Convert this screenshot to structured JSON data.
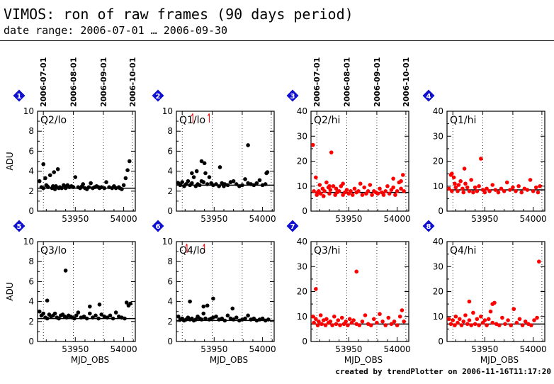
{
  "title": "VIMOS: ron of raw frames (90 days period)",
  "subtitle": "date range: 2006-07-01 … 2006-09-30",
  "footer": "created by trendPlotter on 2006-11-16T11:17:20",
  "chart_data": {
    "type": "scatter",
    "xlabel": "MJD_OBS",
    "ylabel": "ADU",
    "xlim": [
      53911,
      54012
    ],
    "xticks": [
      53950,
      54000
    ],
    "date_ticks": [
      {
        "label": "2006-07-01",
        "mjd": 53917
      },
      {
        "label": "2006-08-01",
        "mjd": 53948
      },
      {
        "label": "2006-09-01",
        "mjd": 53979
      },
      {
        "label": "2006-10-01",
        "mjd": 54009
      }
    ],
    "panels": [
      {
        "number": "1",
        "label": "Q2/lo",
        "color": "#000000",
        "ylim": [
          0,
          10
        ],
        "yticks": [
          0,
          2,
          4,
          6,
          8,
          10
        ],
        "ref": 2.3,
        "outliers": [],
        "x": [
          53913,
          53915,
          53917,
          53919,
          53920,
          53922,
          53924,
          53926,
          53927,
          53929,
          53930,
          53932,
          53934,
          53936,
          53938,
          53940,
          53942,
          53944,
          53946,
          53948,
          53950,
          53953,
          53955,
          53957,
          53960,
          53962,
          53964,
          53966,
          53968,
          53970,
          53972,
          53975,
          53977,
          53980,
          53982,
          53985,
          53988,
          53990,
          53992,
          53995,
          53998,
          54000,
          54002,
          54004,
          54006,
          53917,
          53921,
          53928,
          53933,
          53940,
          53958,
          53974,
          53996
        ],
        "y": [
          3.0,
          2.4,
          2.3,
          3.3,
          2.6,
          2.4,
          3.6,
          2.3,
          2.5,
          2.2,
          2.5,
          4.2,
          2.4,
          2.3,
          2.6,
          2.3,
          2.6,
          2.4,
          2.5,
          2.4,
          3.4,
          2.4,
          2.3,
          2.5,
          2.3,
          2.2,
          2.4,
          2.8,
          2.3,
          2.4,
          2.5,
          2.3,
          2.4,
          2.3,
          2.9,
          2.4,
          2.3,
          2.5,
          2.3,
          2.4,
          2.2,
          2.6,
          3.3,
          4.1,
          5.0,
          4.7,
          2.5,
          3.9,
          2.3,
          2.4,
          2.7,
          2.4,
          2.3
        ]
      },
      {
        "number": "2",
        "label": "Q1/lo",
        "color": "#000000",
        "ylim": [
          0,
          10
        ],
        "yticks": [
          0,
          2,
          4,
          6,
          8,
          10
        ],
        "ref": 2.6,
        "outliers": [
          53928,
          53945
        ],
        "x": [
          53913,
          53915,
          53917,
          53919,
          53921,
          53923,
          53925,
          53927,
          53929,
          53931,
          53933,
          53935,
          53937,
          53939,
          53941,
          53943,
          53945,
          53947,
          53949,
          53952,
          53955,
          53958,
          53961,
          53964,
          53967,
          53970,
          53973,
          53976,
          53979,
          53982,
          53985,
          53988,
          53991,
          53994,
          53997,
          54000,
          54003,
          54005,
          53927,
          53932,
          53937,
          53956,
          53985,
          54004,
          53940,
          53960
        ],
        "y": [
          2.8,
          2.6,
          2.9,
          2.5,
          2.7,
          3.0,
          2.6,
          2.8,
          3.4,
          2.5,
          2.7,
          2.6,
          3.0,
          2.9,
          3.8,
          2.7,
          3.4,
          2.8,
          2.6,
          2.7,
          2.5,
          2.8,
          2.7,
          2.6,
          2.9,
          3.0,
          2.7,
          2.5,
          2.6,
          3.2,
          2.8,
          2.7,
          2.6,
          2.8,
          3.1,
          2.6,
          2.7,
          3.9,
          3.8,
          4.0,
          5.0,
          4.4,
          6.6,
          3.8,
          4.8,
          2.5
        ]
      },
      {
        "number": "3",
        "label": "Q2/hi",
        "color": "#ff0000",
        "ylim": [
          0,
          40
        ],
        "yticks": [
          0,
          10,
          20,
          30,
          40
        ],
        "ref": 7.5,
        "outliers": [],
        "x": [
          53913,
          53914,
          53916,
          53917,
          53918,
          53919,
          53920,
          53921,
          53923,
          53924,
          53925,
          53927,
          53929,
          53930,
          53931,
          53932,
          53934,
          53936,
          53937,
          53938,
          53940,
          53942,
          53944,
          53946,
          53948,
          53950,
          53952,
          53954,
          53956,
          53958,
          53960,
          53962,
          53964,
          53966,
          53968,
          53970,
          53972,
          53974,
          53976,
          53978,
          53980,
          53982,
          53984,
          53986,
          53988,
          53990,
          53992,
          53994,
          53996,
          53998,
          54000,
          54002,
          54004,
          54006,
          54007,
          53930,
          53944,
          53996,
          54004
        ],
        "y": [
          26.5,
          8.0,
          13.5,
          6.5,
          7.5,
          8.0,
          10.5,
          7.0,
          9.0,
          6.0,
          8.0,
          11.5,
          9.5,
          7.0,
          8.5,
          23.5,
          10.0,
          6.5,
          9.0,
          7.5,
          8.0,
          10.0,
          6.5,
          7.5,
          8.5,
          7.0,
          8.0,
          6.5,
          9.0,
          7.5,
          8.0,
          11.0,
          6.5,
          9.5,
          7.0,
          8.0,
          10.5,
          6.5,
          8.0,
          7.5,
          7.0,
          9.0,
          7.5,
          6.5,
          8.0,
          10.0,
          7.0,
          8.5,
          9.5,
          6.5,
          8.0,
          11.5,
          12.0,
          14.5,
          8.0,
          10.0,
          11.0,
          13.0,
          9.0
        ]
      },
      {
        "number": "4",
        "label": "Q1/hi",
        "color": "#ff0000",
        "ylim": [
          0,
          40
        ],
        "yticks": [
          0,
          10,
          20,
          30,
          40
        ],
        "ref": 8.5,
        "outliers": [],
        "x": [
          53913,
          53915,
          53916,
          53918,
          53919,
          53920,
          53922,
          53923,
          53925,
          53927,
          53928,
          53930,
          53932,
          53934,
          53936,
          53938,
          53940,
          53942,
          53944,
          53946,
          53948,
          53950,
          53952,
          53955,
          53958,
          53961,
          53964,
          53967,
          53970,
          53973,
          53976,
          53979,
          53982,
          53985,
          53988,
          53991,
          53994,
          53997,
          54000,
          54003,
          54005,
          54007,
          53929,
          53916
        ],
        "y": [
          9.0,
          14.5,
          8.0,
          13.5,
          11.0,
          9.5,
          8.0,
          10.5,
          12.0,
          9.0,
          7.5,
          11.0,
          9.5,
          8.0,
          12.5,
          7.5,
          9.5,
          8.0,
          10.0,
          21.0,
          8.5,
          7.5,
          9.0,
          8.0,
          10.5,
          8.5,
          7.5,
          9.0,
          8.0,
          11.5,
          8.5,
          9.5,
          8.0,
          10.0,
          7.5,
          9.0,
          8.5,
          12.5,
          8.0,
          9.5,
          7.5,
          10.0,
          17.0,
          15.0
        ]
      },
      {
        "number": "5",
        "label": "Q3/lo",
        "color": "#000000",
        "ylim": [
          0,
          10
        ],
        "yticks": [
          0,
          2,
          4,
          6,
          8,
          10
        ],
        "ref": 2.3,
        "outliers": [],
        "x": [
          53913,
          53915,
          53917,
          53919,
          53921,
          53923,
          53925,
          53927,
          53929,
          53931,
          53933,
          53935,
          53937,
          53939,
          53941,
          53943,
          53945,
          53947,
          53949,
          53951,
          53953,
          53956,
          53959,
          53962,
          53965,
          53968,
          53971,
          53974,
          53977,
          53980,
          53983,
          53986,
          53989,
          53992,
          53995,
          53998,
          54001,
          54003,
          54005,
          54007,
          53940,
          53921,
          53965,
          53975
        ],
        "y": [
          3.0,
          2.6,
          2.8,
          2.4,
          2.3,
          2.7,
          2.5,
          2.6,
          2.8,
          2.4,
          2.3,
          2.6,
          2.7,
          2.5,
          2.4,
          2.6,
          2.5,
          2.4,
          2.3,
          2.6,
          2.9,
          2.4,
          2.5,
          2.3,
          2.8,
          2.4,
          2.6,
          2.3,
          2.7,
          2.5,
          2.4,
          2.6,
          2.3,
          2.9,
          2.5,
          2.4,
          2.3,
          3.9,
          3.6,
          3.8,
          7.1,
          4.1,
          3.5,
          3.7
        ]
      },
      {
        "number": "6",
        "label": "Q4/lo",
        "color": "#000000",
        "ylim": [
          0,
          10
        ],
        "yticks": [
          0,
          2,
          4,
          6,
          8,
          10
        ],
        "ref": 2.1,
        "outliers": [
          53922,
          53940
        ],
        "x": [
          53913,
          53915,
          53917,
          53919,
          53921,
          53923,
          53925,
          53927,
          53929,
          53931,
          53933,
          53935,
          53937,
          53939,
          53941,
          53943,
          53945,
          53947,
          53949,
          53952,
          53955,
          53958,
          53961,
          53964,
          53967,
          53970,
          53973,
          53976,
          53979,
          53982,
          53985,
          53988,
          53991,
          53994,
          53997,
          54000,
          54003,
          54006,
          53925,
          53939,
          53949,
          53969
        ],
        "y": [
          2.5,
          2.2,
          2.3,
          2.1,
          2.2,
          2.4,
          2.2,
          2.3,
          2.1,
          2.2,
          2.5,
          2.3,
          2.2,
          2.8,
          2.3,
          3.6,
          2.2,
          2.3,
          2.4,
          2.5,
          2.2,
          2.3,
          2.1,
          2.6,
          2.3,
          2.2,
          2.4,
          2.1,
          2.2,
          2.3,
          2.6,
          2.2,
          2.3,
          2.1,
          2.2,
          2.3,
          2.1,
          2.2,
          4.0,
          3.5,
          4.3,
          3.3
        ]
      },
      {
        "number": "7",
        "label": "Q3/hi",
        "color": "#ff0000",
        "ylim": [
          0,
          40
        ],
        "yticks": [
          0,
          10,
          20,
          30,
          40
        ],
        "ref": 7.0,
        "outliers": [],
        "x": [
          53913,
          53914,
          53916,
          53918,
          53919,
          53921,
          53922,
          53924,
          53926,
          53927,
          53929,
          53931,
          53933,
          53935,
          53937,
          53939,
          53941,
          53943,
          53945,
          53947,
          53949,
          53951,
          53953,
          53955,
          53958,
          53961,
          53964,
          53967,
          53970,
          53973,
          53976,
          53979,
          53982,
          53985,
          53988,
          53991,
          53994,
          53997,
          54000,
          54003,
          54005,
          54007,
          53916,
          53958
        ],
        "y": [
          10.0,
          7.5,
          9.0,
          6.5,
          8.0,
          10.5,
          7.0,
          8.5,
          6.5,
          9.0,
          7.5,
          8.0,
          6.5,
          10.0,
          7.0,
          8.5,
          6.5,
          9.5,
          7.0,
          8.0,
          6.5,
          9.0,
          7.5,
          8.5,
          7.0,
          6.5,
          8.0,
          10.5,
          7.0,
          6.5,
          9.0,
          7.5,
          11.0,
          8.0,
          6.5,
          9.5,
          7.0,
          8.0,
          6.5,
          10.0,
          12.5,
          8.0,
          21.0,
          28.0
        ]
      },
      {
        "number": "8",
        "label": "Q4/hi",
        "color": "#ff0000",
        "ylim": [
          0,
          40
        ],
        "yticks": [
          0,
          10,
          20,
          30,
          40
        ],
        "ref": 7.0,
        "outliers": [],
        "x": [
          53913,
          53915,
          53917,
          53919,
          53920,
          53922,
          53924,
          53926,
          53928,
          53930,
          53932,
          53934,
          53936,
          53938,
          53940,
          53942,
          53944,
          53946,
          53948,
          53950,
          53952,
          53954,
          53956,
          53958,
          53960,
          53962,
          53965,
          53968,
          53971,
          53974,
          53977,
          53980,
          53983,
          53986,
          53989,
          53992,
          53995,
          53998,
          54001,
          54004,
          54006,
          53934,
          53958,
          53980
        ],
        "y": [
          9.0,
          7.0,
          8.5,
          6.5,
          10.0,
          7.5,
          9.0,
          6.5,
          8.0,
          10.5,
          7.0,
          8.5,
          6.5,
          11.5,
          7.0,
          9.0,
          6.5,
          10.0,
          7.5,
          8.5,
          6.5,
          9.0,
          12.0,
          7.5,
          15.5,
          7.0,
          6.5,
          9.5,
          7.0,
          8.5,
          6.5,
          13.0,
          7.5,
          9.0,
          6.5,
          8.0,
          7.0,
          6.5,
          8.5,
          9.5,
          32.0,
          16.0,
          15.0,
          13.0
        ]
      }
    ]
  }
}
